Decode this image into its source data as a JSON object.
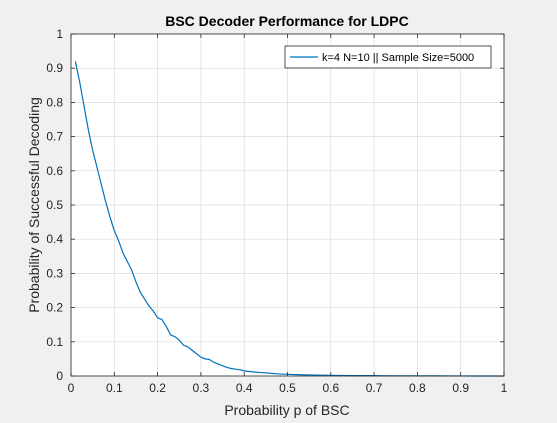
{
  "chart_data": {
    "type": "line",
    "title": "BSC Decoder Performance for LDPC",
    "xlabel": "Probability p of BSC",
    "ylabel": "Probability of Successful Decoding",
    "xlim": [
      0,
      1
    ],
    "ylim": [
      0,
      1
    ],
    "xticks": [
      "0",
      "0.1",
      "0.2",
      "0.3",
      "0.4",
      "0.5",
      "0.6",
      "0.7",
      "0.8",
      "0.9",
      "1"
    ],
    "yticks": [
      "0",
      "0.1",
      "0.2",
      "0.3",
      "0.4",
      "0.5",
      "0.6",
      "0.7",
      "0.8",
      "0.9",
      "1"
    ],
    "grid": true,
    "legend_position": "top-right",
    "series": [
      {
        "name": "k=4 N=10 || Sample Size=5000",
        "color": "#0072bd",
        "x": [
          0.01,
          0.02,
          0.03,
          0.04,
          0.05,
          0.06,
          0.07,
          0.08,
          0.09,
          0.1,
          0.11,
          0.12,
          0.13,
          0.14,
          0.15,
          0.16,
          0.17,
          0.18,
          0.19,
          0.2,
          0.21,
          0.22,
          0.23,
          0.24,
          0.25,
          0.26,
          0.27,
          0.28,
          0.29,
          0.3,
          0.31,
          0.32,
          0.33,
          0.34,
          0.35,
          0.36,
          0.37,
          0.38,
          0.39,
          0.4,
          0.42,
          0.44,
          0.46,
          0.48,
          0.5,
          0.52,
          0.55,
          0.6,
          0.65,
          0.7,
          0.75,
          0.8,
          0.85,
          0.9,
          0.95,
          1.0
        ],
        "y": [
          0.92,
          0.86,
          0.79,
          0.72,
          0.66,
          0.61,
          0.56,
          0.51,
          0.465,
          0.425,
          0.395,
          0.36,
          0.335,
          0.31,
          0.275,
          0.245,
          0.225,
          0.205,
          0.19,
          0.17,
          0.165,
          0.145,
          0.12,
          0.115,
          0.105,
          0.09,
          0.085,
          0.075,
          0.065,
          0.055,
          0.05,
          0.048,
          0.04,
          0.035,
          0.03,
          0.025,
          0.022,
          0.02,
          0.018,
          0.015,
          0.012,
          0.01,
          0.008,
          0.006,
          0.005,
          0.004,
          0.003,
          0.002,
          0.001,
          0.001,
          0.0005,
          0.0005,
          0.0003,
          0.0002,
          0.0001,
          0.0
        ]
      }
    ]
  }
}
